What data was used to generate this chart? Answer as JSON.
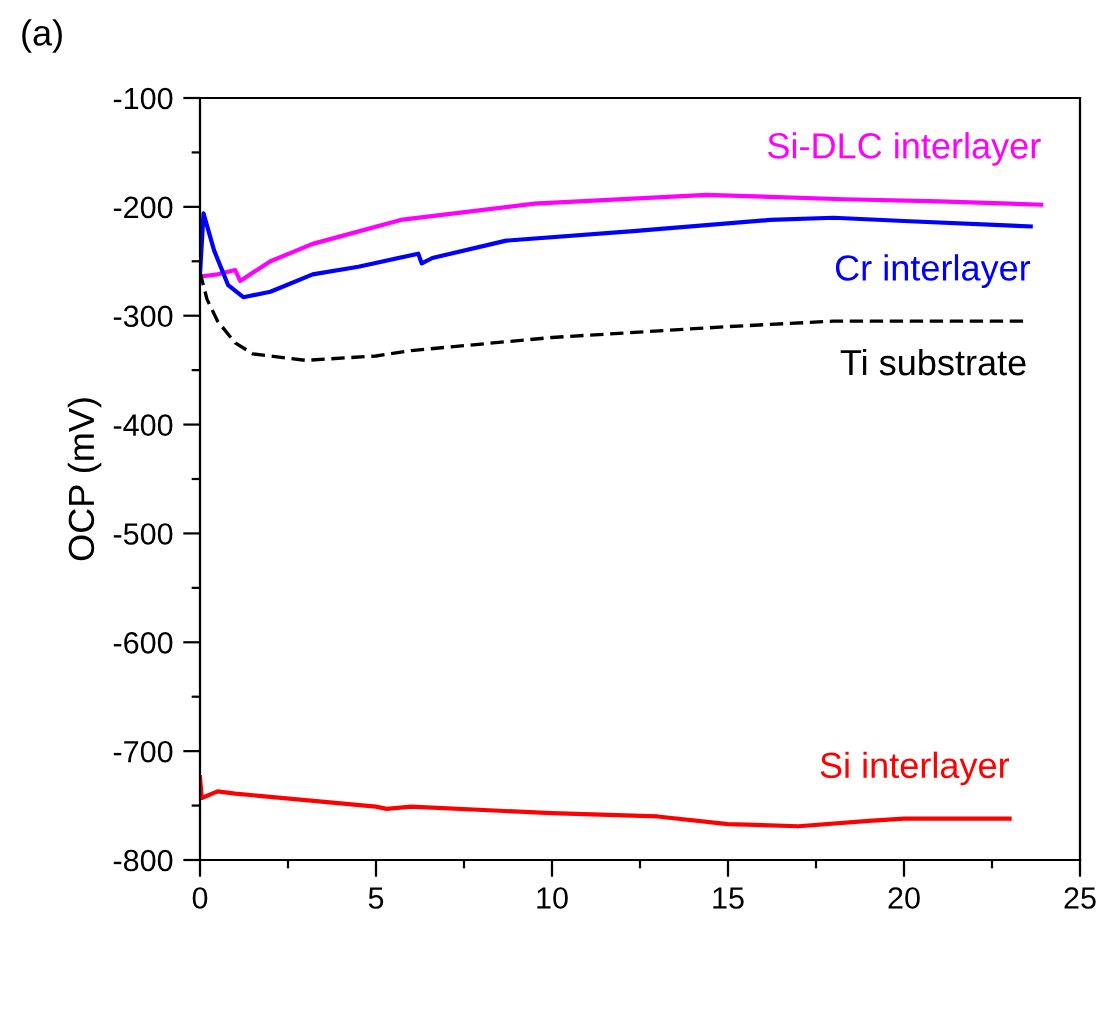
{
  "chart_data": {
    "type": "line",
    "ylabel": "OCP (mV)",
    "annotations": [
      "(a)"
    ],
    "xlim": [
      0,
      25
    ],
    "ylim": [
      -800,
      -100
    ],
    "xticks": [
      0,
      {
        "value": 2.5,
        "label": null
      },
      5,
      {
        "value": 7.5,
        "label": null
      },
      10,
      {
        "value": 12.5,
        "label": null
      },
      15,
      {
        "value": 17.5,
        "label": null
      },
      20,
      {
        "value": 22.5,
        "label": null
      },
      25
    ],
    "yticks": [
      -800,
      {
        "value": -750,
        "label": null
      },
      -700,
      {
        "value": -650,
        "label": null
      },
      -600,
      {
        "value": -550,
        "label": null
      },
      -500,
      {
        "value": -450,
        "label": null
      },
      -400,
      {
        "value": -350,
        "label": null
      },
      -300,
      {
        "value": -250,
        "label": null
      },
      -200,
      {
        "value": -150,
        "label": null
      },
      -100
    ],
    "grid": false,
    "legend": false,
    "series": [
      {
        "name": "Si-DLC interlayer",
        "color": "#ff00ff",
        "line_style": "solid",
        "x": [
          0,
          0.5,
          1.0,
          1.14,
          2,
          3.2,
          5.7,
          9.5,
          14.4,
          18.3,
          21,
          23.9
        ],
        "values": [
          -264,
          -262,
          -258,
          -268,
          -250,
          -234,
          -212,
          -197,
          -189,
          -193,
          -195,
          -198
        ]
      },
      {
        "name": "Cr interlayer",
        "color": "#0000ff",
        "line_style": "solid",
        "x": [
          0,
          0.1,
          0.4,
          0.8,
          1.23,
          2,
          3.2,
          4.5,
          6.2,
          6.3,
          6.6,
          8.7,
          12.4,
          16.2,
          18,
          20,
          23.6
        ],
        "values": [
          -262,
          -206,
          -240,
          -272,
          -283,
          -278,
          -262,
          -255,
          -243,
          -252,
          -247,
          -231,
          -222,
          -212,
          -210,
          -213,
          -218
        ]
      },
      {
        "name": "Ti substrate",
        "color": "#000000",
        "line_style": "dashed",
        "x": [
          0,
          0.2,
          0.5,
          1.0,
          1.5,
          3,
          5,
          6,
          10,
          15,
          18,
          23.5
        ],
        "values": [
          -260,
          -285,
          -305,
          -325,
          -335,
          -341,
          -337,
          -332,
          -320,
          -310,
          -305,
          -305
        ]
      },
      {
        "name": "Si interlayer",
        "color": "#ff0000",
        "line_style": "solid",
        "x": [
          0,
          0.05,
          0.5,
          1,
          5,
          5.3,
          6,
          10,
          13,
          15,
          17,
          19,
          20,
          23
        ],
        "values": [
          -724,
          -743,
          -737,
          -739,
          -751,
          -753,
          -751,
          -757,
          -760,
          -767,
          -769,
          -764,
          -762,
          -762
        ]
      }
    ]
  }
}
